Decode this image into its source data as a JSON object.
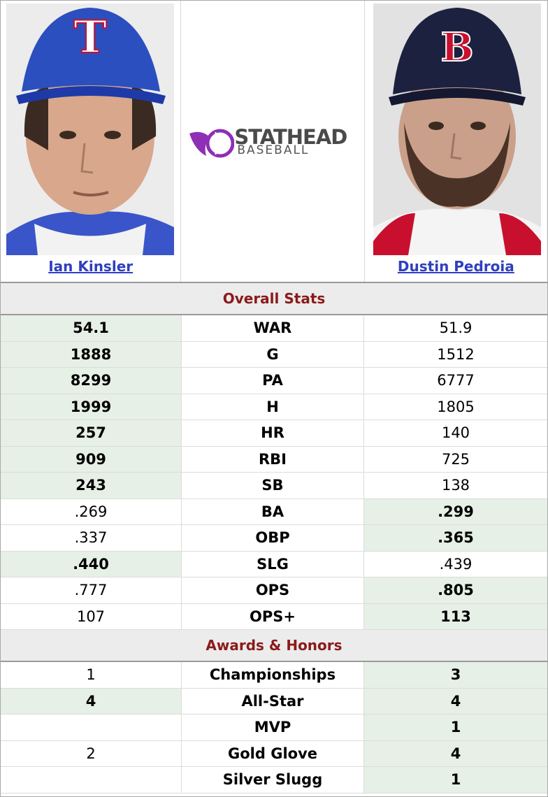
{
  "players": {
    "left": {
      "name": "Ian Kinsler",
      "cap_letter": "T",
      "cap_color": "#2b4fbf"
    },
    "right": {
      "name": "Dustin Pedroia",
      "cap_letter": "B",
      "cap_color": "#1c2140"
    }
  },
  "logo": {
    "line1": "STATHEAD",
    "line2": "BASEBALL",
    "accent": "#8e2fb5"
  },
  "sections": {
    "overall": "Overall Stats",
    "awards": "Awards & Honors"
  },
  "overall_stats": [
    {
      "stat": "WAR",
      "left": "54.1",
      "right": "51.9",
      "winner": "left"
    },
    {
      "stat": "G",
      "left": "1888",
      "right": "1512",
      "winner": "left"
    },
    {
      "stat": "PA",
      "left": "8299",
      "right": "6777",
      "winner": "left"
    },
    {
      "stat": "H",
      "left": "1999",
      "right": "1805",
      "winner": "left"
    },
    {
      "stat": "HR",
      "left": "257",
      "right": "140",
      "winner": "left"
    },
    {
      "stat": "RBI",
      "left": "909",
      "right": "725",
      "winner": "left"
    },
    {
      "stat": "SB",
      "left": "243",
      "right": "138",
      "winner": "left"
    },
    {
      "stat": "BA",
      "left": ".269",
      "right": ".299",
      "winner": "right"
    },
    {
      "stat": "OBP",
      "left": ".337",
      "right": ".365",
      "winner": "right"
    },
    {
      "stat": "SLG",
      "left": ".440",
      "right": ".439",
      "winner": "left"
    },
    {
      "stat": "OPS",
      "left": ".777",
      "right": ".805",
      "winner": "right"
    },
    {
      "stat": "OPS+",
      "left": "107",
      "right": "113",
      "winner": "right"
    }
  ],
  "awards": [
    {
      "stat": "Championships",
      "left": "1",
      "right": "3",
      "winner": "right"
    },
    {
      "stat": "All-Star",
      "left": "4",
      "right": "4",
      "winner": "both"
    },
    {
      "stat": "MVP",
      "left": "",
      "right": "1",
      "winner": "right"
    },
    {
      "stat": "Gold Glove",
      "left": "2",
      "right": "4",
      "winner": "right"
    },
    {
      "stat": "Silver Slugg",
      "left": "",
      "right": "1",
      "winner": "right"
    }
  ],
  "colors": {
    "win_bg": "#e6f0e6",
    "section_text": "#8b1a1a",
    "link": "#2f3fbf"
  }
}
